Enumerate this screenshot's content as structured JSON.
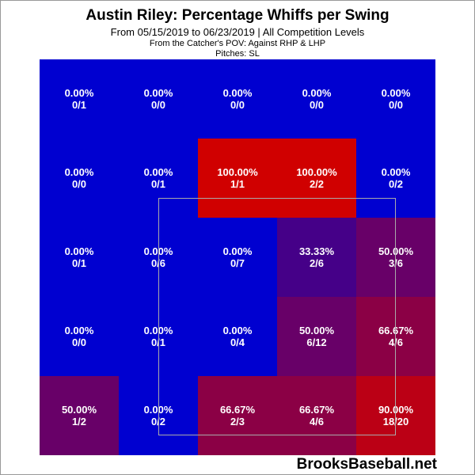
{
  "chart_data": {
    "type": "heatmap",
    "title": "Austin Riley: Percentage Whiffs per Swing",
    "subtitle": "From 05/15/2019 to 06/23/2019 | All Competition Levels",
    "perspective": "From the Catcher's POV:  Against RHP & LHP",
    "pitches": "Pitches:  SL",
    "rows": 5,
    "cols": 5,
    "cells": [
      [
        {
          "pct": "0.00%",
          "frac": "0/1",
          "color": "#0000d0"
        },
        {
          "pct": "0.00%",
          "frac": "0/0",
          "color": "#0000d0"
        },
        {
          "pct": "0.00%",
          "frac": "0/0",
          "color": "#0000d0"
        },
        {
          "pct": "0.00%",
          "frac": "0/0",
          "color": "#0000d0"
        },
        {
          "pct": "0.00%",
          "frac": "0/0",
          "color": "#0000d0"
        }
      ],
      [
        {
          "pct": "0.00%",
          "frac": "0/0",
          "color": "#0000d0"
        },
        {
          "pct": "0.00%",
          "frac": "0/1",
          "color": "#0000d0"
        },
        {
          "pct": "100.00%",
          "frac": "1/1",
          "color": "#d00000"
        },
        {
          "pct": "100.00%",
          "frac": "2/2",
          "color": "#d00000"
        },
        {
          "pct": "0.00%",
          "frac": "0/2",
          "color": "#0000d0"
        }
      ],
      [
        {
          "pct": "0.00%",
          "frac": "0/1",
          "color": "#0000d0"
        },
        {
          "pct": "0.00%",
          "frac": "0/6",
          "color": "#0000d0"
        },
        {
          "pct": "0.00%",
          "frac": "0/7",
          "color": "#0000d0"
        },
        {
          "pct": "33.33%",
          "frac": "2/6",
          "color": "#450088"
        },
        {
          "pct": "50.00%",
          "frac": "3/6",
          "color": "#680068"
        }
      ],
      [
        {
          "pct": "0.00%",
          "frac": "0/0",
          "color": "#0000d0"
        },
        {
          "pct": "0.00%",
          "frac": "0/1",
          "color": "#0000d0"
        },
        {
          "pct": "0.00%",
          "frac": "0/4",
          "color": "#0000d0"
        },
        {
          "pct": "50.00%",
          "frac": "6/12",
          "color": "#680068"
        },
        {
          "pct": "66.67%",
          "frac": "4/6",
          "color": "#8b0045"
        }
      ],
      [
        {
          "pct": "50.00%",
          "frac": "1/2",
          "color": "#680068"
        },
        {
          "pct": "0.00%",
          "frac": "0/2",
          "color": "#0000d0"
        },
        {
          "pct": "66.67%",
          "frac": "2/3",
          "color": "#8b0045"
        },
        {
          "pct": "66.67%",
          "frac": "4/6",
          "color": "#8b0045"
        },
        {
          "pct": "90.00%",
          "frac": "18/20",
          "color": "#bb0015"
        }
      ]
    ]
  },
  "brand": "BrooksBaseball.net"
}
